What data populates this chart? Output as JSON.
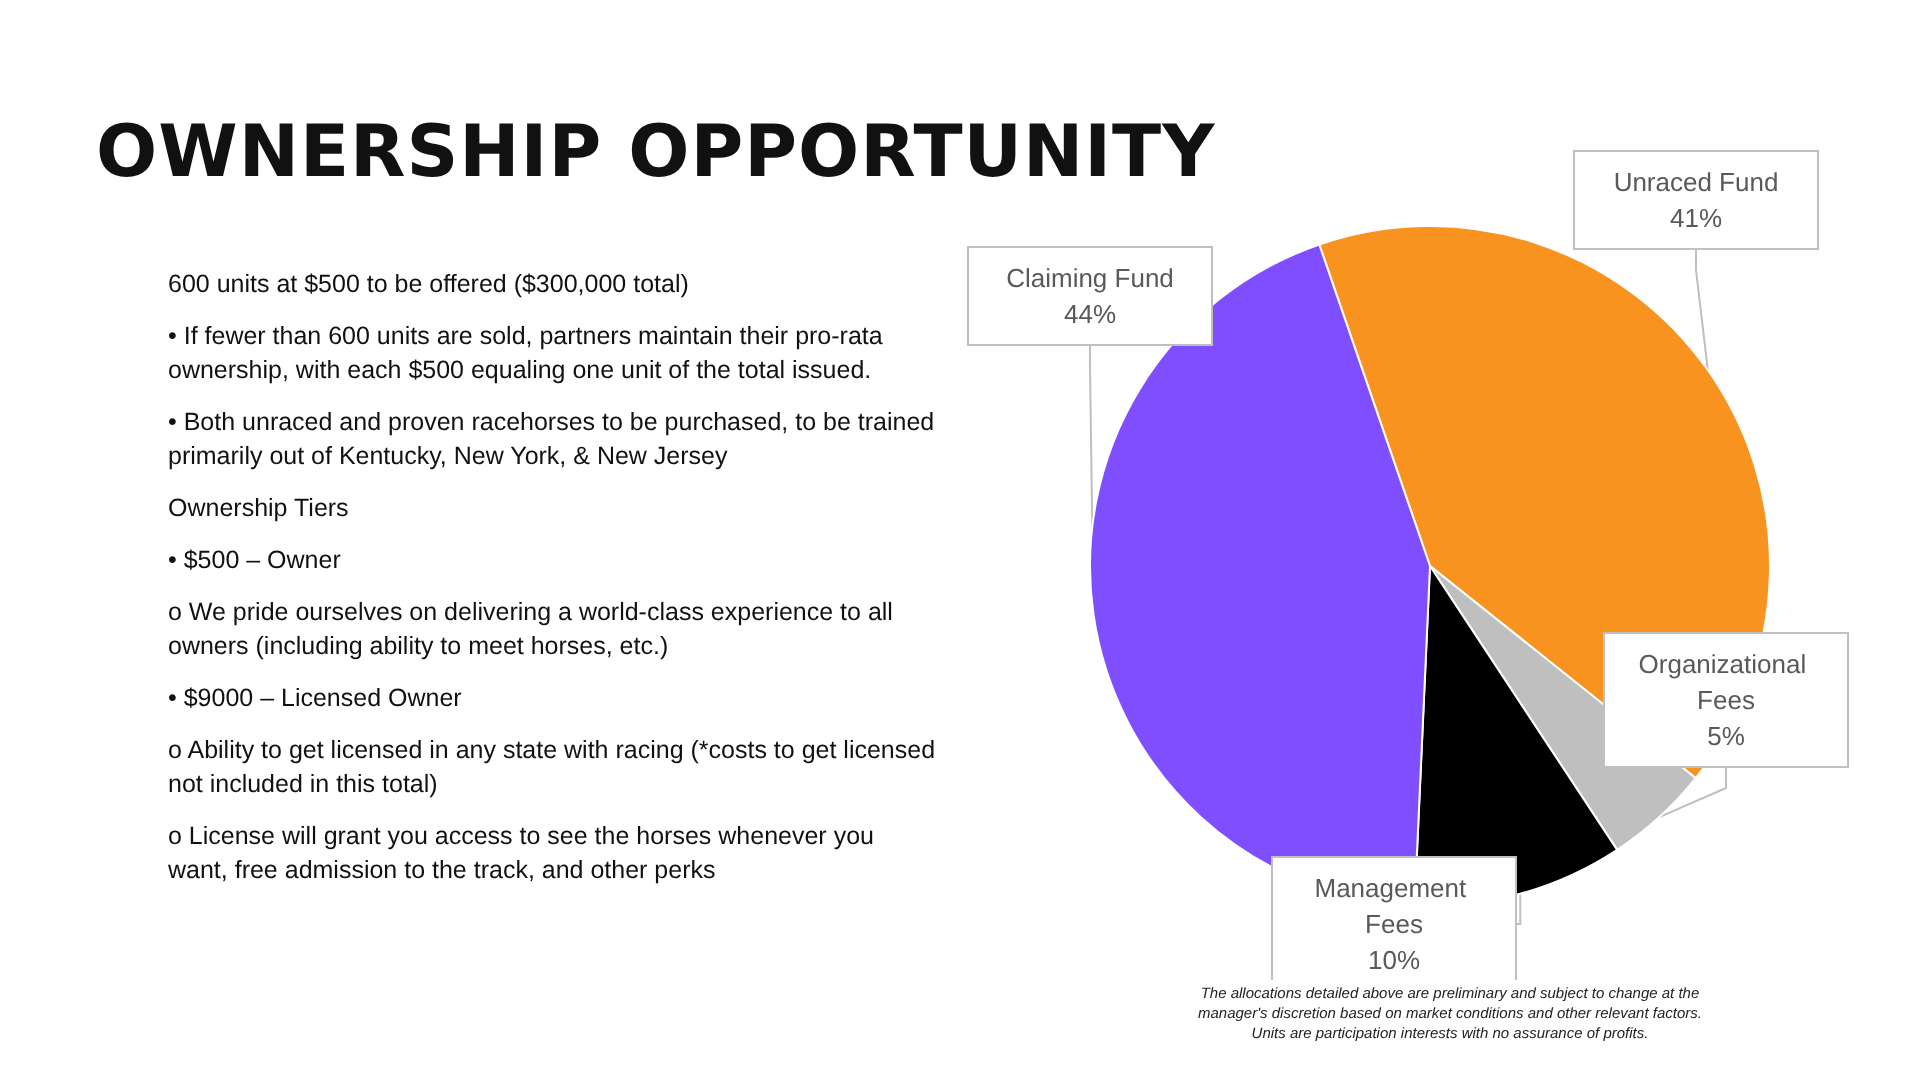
{
  "chart_data": {
    "type": "pie",
    "title": "OWNERSHIP OPPORTUNITY",
    "categories": [
      "Unraced Fund",
      "Organizational Fees",
      "Management Fees",
      "Claiming Fund"
    ],
    "values": [
      41,
      5,
      10,
      44
    ],
    "colors": [
      "#f7931e",
      "#bfbfbf",
      "#000000",
      "#7f4fff"
    ],
    "value_labels": [
      "41%",
      "5%",
      "10%",
      "44%"
    ],
    "legend": false,
    "annotations": [
      "600 units at $500 to be offered ($300,000 total)",
      "• If fewer than 600 units are sold, partners maintain their pro-rata ownership, with each $500 equaling one unit of the total issued.",
      "• Both unraced and proven racehorses to be purchased, to be trained primarily out of Kentucky, New York, & New Jersey",
      "Ownership Tiers",
      "• $500 – Owner",
      "o We pride ourselves on delivering a world-class experience to all owners (including ability to meet horses, etc.)",
      "• $9000 – Licensed Owner",
      "o Ability to get licensed in any state with racing (*costs to get licensed not included in this total)",
      "o License will grant you access to see the horses whenever you want, free admission to the track, and other perks",
      "The allocations detailed above are preliminary and subject to change at the manager's discretion based on market conditions and other relevant factors. Units are participation interests with no assurance of profits."
    ]
  }
}
